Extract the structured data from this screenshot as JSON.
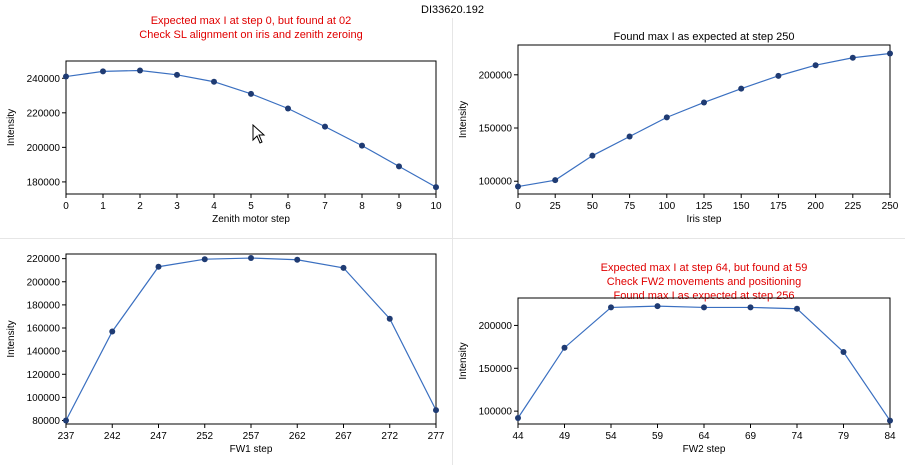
{
  "window": {
    "title": "DI33620.192"
  },
  "chart_data": [
    {
      "type": "line",
      "title_lines": [
        "Expected max I at step 0, but found at 02",
        "Check SL alignment on iris and zenith zeroing"
      ],
      "title_color": "#e00000",
      "xlabel": "Zenith motor step",
      "ylabel": "Intensity",
      "xlim": [
        0,
        10
      ],
      "ylim": [
        173000,
        250000
      ],
      "xticks": [
        0,
        1,
        2,
        3,
        4,
        5,
        6,
        7,
        8,
        9,
        10
      ],
      "yticks": [
        180000,
        200000,
        220000,
        240000
      ],
      "x": [
        0,
        1,
        2,
        3,
        4,
        5,
        6,
        7,
        8,
        9,
        10
      ],
      "y": [
        241000,
        244000,
        244500,
        242000,
        238000,
        231000,
        222500,
        212000,
        201000,
        189000,
        177000
      ],
      "line_color": "#3a6fc0",
      "marker_color": "#1f3b73"
    },
    {
      "type": "line",
      "title_lines": [
        "Found max I as expected at step 250"
      ],
      "title_color": "#000000",
      "xlabel": "Iris step",
      "ylabel": "Intensity",
      "xlim": [
        0,
        250
      ],
      "ylim": [
        88000,
        228000
      ],
      "xticks": [
        0,
        25,
        50,
        75,
        100,
        125,
        150,
        175,
        200,
        225,
        250
      ],
      "yticks": [
        100000,
        150000,
        200000
      ],
      "x": [
        0,
        25,
        50,
        75,
        100,
        125,
        150,
        175,
        200,
        225,
        250
      ],
      "y": [
        95000,
        101000,
        124000,
        142000,
        160000,
        174000,
        187000,
        199000,
        209000,
        216000,
        220000
      ],
      "line_color": "#3a6fc0",
      "marker_color": "#1f3b73"
    },
    {
      "type": "line",
      "title_lines": [],
      "title_color": "#000000",
      "xlabel": "FW1 step",
      "ylabel": "Intensity",
      "xlim": [
        237,
        277
      ],
      "ylim": [
        77000,
        224000
      ],
      "xticks": [
        237,
        242,
        247,
        252,
        257,
        262,
        267,
        272,
        277
      ],
      "yticks": [
        80000,
        100000,
        120000,
        140000,
        160000,
        180000,
        200000,
        220000
      ],
      "x": [
        237,
        242,
        247,
        252,
        257,
        262,
        267,
        272,
        277
      ],
      "y": [
        80000,
        157000,
        213000,
        219500,
        220500,
        219000,
        212000,
        168000,
        89000
      ],
      "line_color": "#3a6fc0",
      "marker_color": "#1f3b73"
    },
    {
      "type": "line",
      "title_lines": [
        "Expected max I at step 64, but found at 59",
        "Check FW2 movements and positioning",
        "Found max I as expected at step 256"
      ],
      "title_color": "#e00000",
      "xlabel": "FW2 step",
      "ylabel": "Intensity",
      "xlim": [
        44,
        84
      ],
      "ylim": [
        85000,
        232000
      ],
      "xticks": [
        44,
        49,
        54,
        59,
        64,
        69,
        74,
        79,
        84
      ],
      "yticks": [
        100000,
        150000,
        200000
      ],
      "x": [
        44,
        49,
        54,
        59,
        64,
        69,
        74,
        79,
        84
      ],
      "y": [
        92000,
        174000,
        221000,
        222500,
        221000,
        221000,
        219500,
        169000,
        89000
      ],
      "line_color": "#3a6fc0",
      "marker_color": "#1f3b73"
    }
  ]
}
